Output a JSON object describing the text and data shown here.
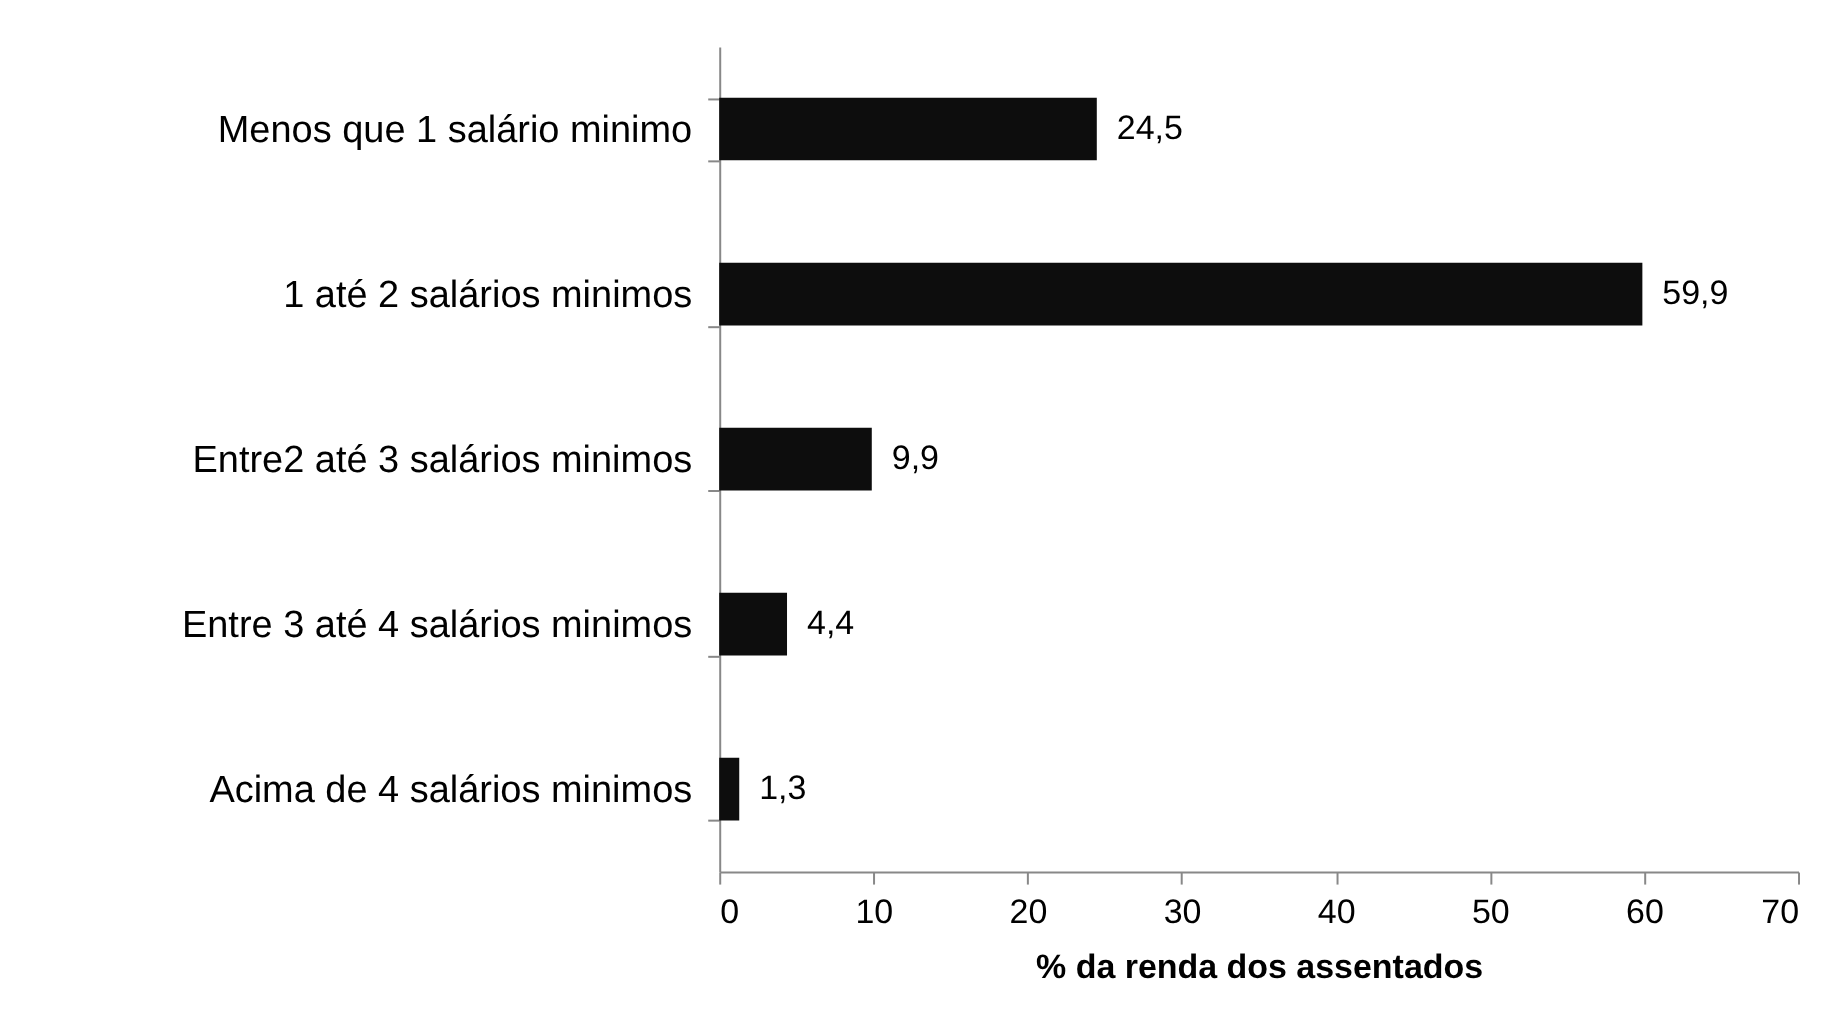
{
  "chart_data": {
    "type": "bar",
    "orientation": "horizontal",
    "categories": [
      "Menos que 1 salário minimo",
      "1 até 2 salários minimos",
      "Entre2 até 3 salários minimos",
      "Entre 3 até 4 salários minimos",
      "Acima de 4 salários minimos"
    ],
    "values": [
      24.5,
      59.9,
      9.9,
      4.4,
      1.3
    ],
    "value_labels": [
      "24,5",
      "59,9",
      "9,9",
      "4,4",
      "1,3"
    ],
    "color": "#0d0d0d",
    "xlabel": "% da renda dos assentados",
    "xlim": [
      0,
      70
    ],
    "xticks": [
      0,
      10,
      20,
      30,
      40,
      50,
      60,
      70
    ],
    "grid": false
  }
}
